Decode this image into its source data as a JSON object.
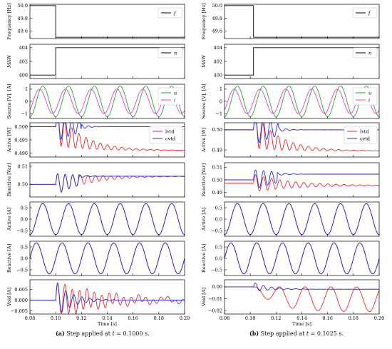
{
  "colors": {
    "red": "#e8262b",
    "blue": "#1f2ad6",
    "green": "#2ca02c",
    "magenta": "#e040c8",
    "black": "#000000"
  },
  "figure": {
    "captions": [
      {
        "label": "(a)",
        "text_pre": "Step applied at ",
        "var": "t",
        "text_post": " = 0.1000 s."
      },
      {
        "label": "(b)",
        "text_pre": "Step applied at ",
        "var": "t",
        "text_post": " = 0.1025 s."
      }
    ]
  },
  "chart_data": [
    {
      "id": "a",
      "type": "line",
      "step_time": 0.1,
      "xlim": [
        0.08,
        0.2
      ],
      "xticks": [
        0.08,
        0.1,
        0.12,
        0.14,
        0.16,
        0.18,
        0.2
      ],
      "xticklabels": [
        "0.08",
        "0.10",
        "0.12",
        "0.14",
        "0.16",
        "0.18",
        "0.20"
      ],
      "xlabel": "Time [s]",
      "panels": [
        {
          "key": "freq",
          "ylabel": "Frequency [Hz]",
          "ylim": [
            49.48,
            50.02
          ],
          "yticks": [
            50.0,
            49.8,
            49.6
          ],
          "yticklabels": [
            "50.0",
            "49.8",
            "49.6"
          ],
          "legend": [
            {
              "name": "f",
              "color": "black"
            }
          ],
          "series": [
            {
              "name": "f",
              "color": "black",
              "kind": "step",
              "before": 50.0,
              "after": 49.5
            }
          ]
        },
        {
          "key": "maw",
          "ylabel": "MAW",
          "ylim": [
            399.5,
            404.5
          ],
          "yticks": [
            404,
            402,
            400
          ],
          "yticklabels": [
            "404",
            "402",
            "400"
          ],
          "legend": [
            {
              "name": "n",
              "color": "black"
            }
          ],
          "series": [
            {
              "name": "n",
              "color": "black",
              "kind": "step",
              "before": 400,
              "after": 404
            }
          ]
        },
        {
          "key": "source",
          "ylabel": "Source [V], [A]",
          "ylim": [
            -1.4,
            1.4
          ],
          "yticks": [
            1,
            0,
            -1
          ],
          "yticklabels": [
            "1",
            "0",
            "−1"
          ],
          "legend": [
            {
              "name": "u",
              "color": "green"
            },
            {
              "name": "i",
              "color": "magenta"
            }
          ],
          "series": [
            {
              "name": "u",
              "color": "green",
              "kind": "sin",
              "amp": 1.25,
              "freq": 50,
              "phase": -1.5708
            },
            {
              "name": "i",
              "color": "magenta",
              "kind": "sin",
              "amp": 1.0,
              "freq": 50,
              "phase": -0.785
            }
          ]
        },
        {
          "key": "active_w",
          "ylabel": "Active [W]",
          "ylim": [
            0.4885,
            0.5015
          ],
          "yticks": [
            0.5,
            0.495,
            0.49
          ],
          "yticklabels": [
            "0.500",
            "0.495",
            "0.490"
          ],
          "legend": [
            {
              "name": "lvtd",
              "color": "red"
            },
            {
              "name": "cvtd",
              "color": "blue"
            }
          ],
          "series": [
            {
              "name": "lvtd",
              "color": "red",
              "kind": "resp",
              "y0": 0.5,
              "y1": 0.491,
              "amp": 0.007,
              "settle": 0.02,
              "osc": 180
            },
            {
              "name": "cvtd",
              "color": "blue",
              "kind": "resp",
              "y0": 0.5,
              "y1": 0.5,
              "amp": 0.006,
              "settle": 0.02,
              "osc": 180,
              "jump": 0.12
            }
          ]
        },
        {
          "key": "reactive_var",
          "ylabel": "Reactive [Var]",
          "ylim": [
            0.493,
            0.512
          ],
          "yticks": [
            0.51,
            0.5
          ],
          "yticklabels": [
            "0.51",
            "0.50"
          ],
          "legend": [],
          "series": [
            {
              "name": "lvtd",
              "color": "red",
              "kind": "resp",
              "y0": 0.5,
              "y1": 0.5045,
              "amp": 0.006,
              "settle": 0.025,
              "osc": 170
            },
            {
              "name": "cvtd",
              "color": "blue",
              "kind": "resp",
              "y0": 0.5,
              "y1": 0.5045,
              "amp": 0.006,
              "settle": 0.025,
              "osc": 170,
              "jump": 0.118
            }
          ]
        },
        {
          "key": "active_a",
          "ylabel": "Active [A]",
          "ylim": [
            -0.75,
            0.75
          ],
          "yticks": [
            0.5,
            0,
            -0.5
          ],
          "yticklabels": [
            "0.5",
            "0.0",
            "−0.5"
          ],
          "legend": [],
          "series": [
            {
              "name": "lvtd",
              "color": "red",
              "kind": "sin",
              "amp": 0.68,
              "freq": 50,
              "phase": -1.5708
            },
            {
              "name": "cvtd",
              "color": "blue",
              "kind": "sin",
              "amp": 0.68,
              "freq": 50,
              "phase": -1.5708
            }
          ]
        },
        {
          "key": "reactive_a",
          "ylabel": "Reactive [A]",
          "ylim": [
            -0.75,
            0.75
          ],
          "yticks": [
            0.5,
            0,
            -0.5
          ],
          "yticklabels": [
            "0.5",
            "0.0",
            "−0.5"
          ],
          "legend": [],
          "series": [
            {
              "name": "lvtd",
              "color": "red",
              "kind": "sin",
              "amp": 0.68,
              "freq": 50,
              "phase": 0
            },
            {
              "name": "cvtd",
              "color": "blue",
              "kind": "sin",
              "amp": 0.68,
              "freq": 50,
              "phase": 0
            }
          ]
        },
        {
          "key": "void",
          "ylabel": "Void [A]",
          "ylim": [
            -0.0065,
            0.0095
          ],
          "yticks": [
            0.005,
            0,
            -0.005
          ],
          "yticklabels": [
            "0.005",
            "0.000",
            "−0.005"
          ],
          "legend": [],
          "series": [
            {
              "name": "lvtd",
              "color": "red",
              "kind": "burst",
              "amp": 0.008,
              "decay": 0.04,
              "osc": 175,
              "sustain": 0.001
            },
            {
              "name": "cvtd",
              "color": "blue",
              "kind": "burst",
              "amp": 0.0085,
              "decay": 0.012,
              "osc": 160,
              "sustain": 0
            }
          ]
        }
      ]
    },
    {
      "id": "b",
      "type": "line",
      "step_time": 0.1025,
      "xlim": [
        0.08,
        0.2
      ],
      "xticks": [
        0.08,
        0.1,
        0.12,
        0.14,
        0.16,
        0.18,
        0.2
      ],
      "xticklabels": [
        "0.08",
        "0.10",
        "0.12",
        "0.14",
        "0.16",
        "0.18",
        "0.20"
      ],
      "xlabel": "Time [s]",
      "panels": [
        {
          "key": "freq",
          "ylabel": "Frequency [Hz]",
          "ylim": [
            49.48,
            50.02
          ],
          "yticks": [
            50.0,
            49.8,
            49.6
          ],
          "yticklabels": [
            "50.0",
            "49.8",
            "49.6"
          ],
          "legend": [
            {
              "name": "f",
              "color": "black"
            }
          ],
          "series": [
            {
              "name": "f",
              "color": "black",
              "kind": "step",
              "before": 50.0,
              "after": 49.5
            }
          ]
        },
        {
          "key": "maw",
          "ylabel": "MAW",
          "ylim": [
            399.5,
            404.5
          ],
          "yticks": [
            404,
            402,
            400
          ],
          "yticklabels": [
            "404",
            "402",
            "400"
          ],
          "legend": [
            {
              "name": "n",
              "color": "black"
            }
          ],
          "series": [
            {
              "name": "n",
              "color": "black",
              "kind": "step",
              "before": 400,
              "after": 404
            }
          ]
        },
        {
          "key": "source",
          "ylabel": "Source [V], [A]",
          "ylim": [
            -1.4,
            1.4
          ],
          "yticks": [
            1,
            0,
            -1
          ],
          "yticklabels": [
            "1",
            "0",
            "−1"
          ],
          "legend": [
            {
              "name": "u",
              "color": "green"
            },
            {
              "name": "i",
              "color": "magenta"
            }
          ],
          "series": [
            {
              "name": "u",
              "color": "green",
              "kind": "sin",
              "amp": 1.25,
              "freq": 50,
              "phase": -1.5708
            },
            {
              "name": "i",
              "color": "magenta",
              "kind": "sin",
              "amp": 1.0,
              "freq": 50,
              "phase": -0.785
            }
          ]
        },
        {
          "key": "active_w",
          "ylabel": "Active [W]",
          "ylim": [
            0.4865,
            0.5035
          ],
          "yticks": [
            0.5,
            0.49
          ],
          "yticklabels": [
            "0.50",
            "0.49"
          ],
          "legend": [
            {
              "name": "lvtd",
              "color": "red"
            },
            {
              "name": "cvtd",
              "color": "blue"
            }
          ],
          "series": [
            {
              "name": "lvtd",
              "color": "red",
              "kind": "resp",
              "y0": 0.5,
              "y1": 0.4895,
              "amp": 0.009,
              "settle": 0.02,
              "osc": 170
            },
            {
              "name": "cvtd",
              "color": "blue",
              "kind": "resp",
              "y0": 0.5,
              "y1": 0.5,
              "amp": 0.008,
              "settle": 0.02,
              "osc": 170,
              "jump": 0.122
            }
          ]
        },
        {
          "key": "reactive_var",
          "ylabel": "Reactive [Var]",
          "ylim": [
            0.4865,
            0.5135
          ],
          "yticks": [
            0.51,
            0.5,
            0.49
          ],
          "yticklabels": [
            "0.51",
            "0.50",
            "0.49"
          ],
          "legend": [],
          "series": [
            {
              "name": "lvtd",
              "color": "red",
              "kind": "resp",
              "y0": 0.4975,
              "y1": 0.4955,
              "amp": 0.007,
              "settle": 0.03,
              "osc": 160
            },
            {
              "name": "cvtd",
              "color": "blue",
              "kind": "resp",
              "y0": 0.5,
              "y1": 0.5045,
              "amp": 0.008,
              "settle": 0.03,
              "osc": 160,
              "jump": 0.121
            }
          ]
        },
        {
          "key": "active_a",
          "ylabel": "Active [A]",
          "ylim": [
            -0.75,
            0.75
          ],
          "yticks": [
            0.5,
            0,
            -0.5
          ],
          "yticklabels": [
            "0.5",
            "0.0",
            "−0.5"
          ],
          "legend": [],
          "series": [
            {
              "name": "lvtd",
              "color": "red",
              "kind": "sin",
              "amp": 0.68,
              "freq": 50,
              "phase": -1.5708
            },
            {
              "name": "cvtd",
              "color": "blue",
              "kind": "sin",
              "amp": 0.68,
              "freq": 50,
              "phase": -1.5708
            }
          ]
        },
        {
          "key": "reactive_a",
          "ylabel": "Reactive [A]",
          "ylim": [
            -0.75,
            0.75
          ],
          "yticks": [
            0.5,
            0,
            -0.5
          ],
          "yticklabels": [
            "0.5",
            "0.0",
            "−0.5"
          ],
          "legend": [],
          "series": [
            {
              "name": "lvtd",
              "color": "red",
              "kind": "sin",
              "amp": 0.68,
              "freq": 50,
              "phase": 0
            },
            {
              "name": "cvtd",
              "color": "blue",
              "kind": "sin",
              "amp": 0.68,
              "freq": 50,
              "phase": 0
            }
          ]
        },
        {
          "key": "void",
          "ylabel": "Void [A]",
          "ylim": [
            -0.023,
            0.006
          ],
          "yticks": [
            0,
            -0.01,
            -0.02
          ],
          "yticklabels": [
            "0.00",
            "−0.01",
            "−0.02"
          ],
          "legend": [],
          "series": [
            {
              "name": "lvtd",
              "color": "red",
              "kind": "grow",
              "amp": 0.0105,
              "offset": -0.0105,
              "osc": 50,
              "rise": 0.015
            },
            {
              "name": "cvtd",
              "color": "blue",
              "kind": "burst",
              "amp": 0.004,
              "decay": 0.012,
              "osc": 160,
              "sustain": 0,
              "offset": -0.002
            }
          ]
        }
      ]
    }
  ]
}
